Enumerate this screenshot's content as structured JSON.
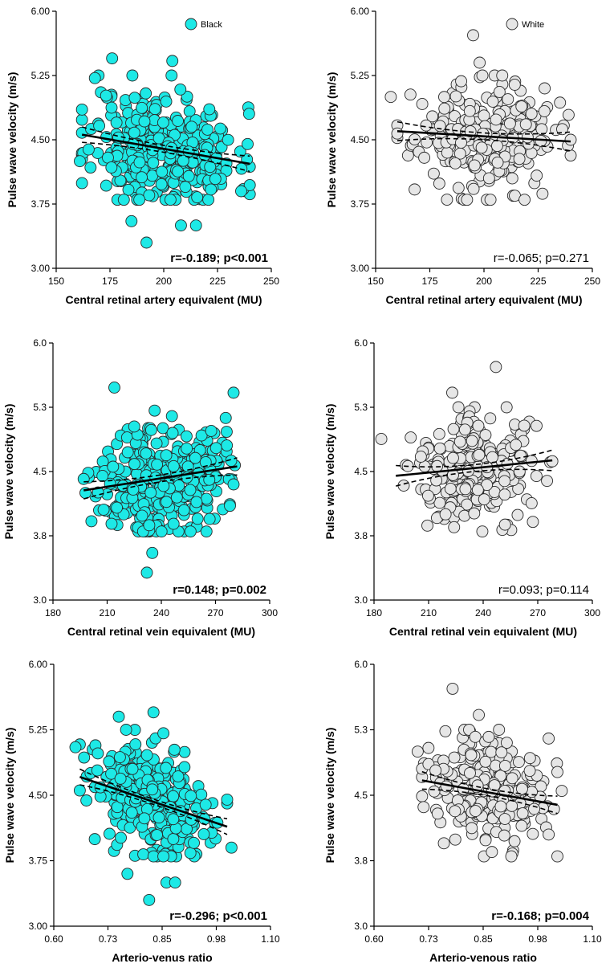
{
  "legend": {
    "black": "Black",
    "white": "White"
  },
  "colors": {
    "black_fill": "#1de9e6",
    "white_fill": "#e6e6e6",
    "stroke": "#2a2a2a",
    "line": "#000000"
  },
  "chart_data": [
    {
      "id": "black-cra",
      "type": "scatter",
      "group": "Black",
      "ylabel": "Pulse wave velocity (m/s)",
      "xlabel": "Central retinal artery equivalent (MU)",
      "xlim": [
        150,
        250
      ],
      "ylim": [
        3.0,
        6.0
      ],
      "xticks": [
        "150",
        "175",
        "200",
        "225",
        "250"
      ],
      "yticks": [
        "3.00",
        "3.75",
        "4.50",
        "5.25",
        "6.00"
      ],
      "stat": "r=-0.189; p<0.001",
      "stat_bold": true,
      "fit": {
        "x": [
          162,
          240
        ],
        "y": [
          4.56,
          4.22
        ],
        "ci": [
          0.09,
          0.04,
          0.09
        ]
      },
      "legend": "top-right",
      "points_n": 330,
      "x_mean": 200,
      "x_sd": 17,
      "y_noise": 0.33,
      "seed": 11,
      "extras": [
        [
          176,
          5.45
        ],
        [
          204,
          5.42
        ],
        [
          192,
          3.3
        ],
        [
          185,
          3.55
        ],
        [
          208,
          3.5
        ],
        [
          215,
          3.5
        ],
        [
          239,
          4.45
        ],
        [
          161,
          4.25
        ],
        [
          168,
          5.22
        ],
        [
          236,
          3.9
        ]
      ]
    },
    {
      "id": "white-cra",
      "type": "scatter",
      "group": "White",
      "ylabel": "Pulse wave velocity (m/s)",
      "xlabel": "Central retinal artery equivalent (MU)",
      "xlim": [
        150,
        250
      ],
      "ylim": [
        3.0,
        6.0
      ],
      "xticks": [
        "150",
        "175",
        "200",
        "225",
        "250"
      ],
      "yticks": [
        "3.00",
        "3.75",
        "4.50",
        "5.25",
        "6.00"
      ],
      "stat": "r=-0.065; p=0.271",
      "stat_bold": false,
      "fit": {
        "x": [
          160,
          240
        ],
        "y": [
          4.6,
          4.48
        ],
        "ci": [
          0.11,
          0.04,
          0.11
        ]
      },
      "legend": "top-right",
      "points_n": 260,
      "x_mean": 200,
      "x_sd": 16,
      "y_noise": 0.3,
      "seed": 23,
      "extras": [
        [
          195,
          5.72
        ],
        [
          198,
          5.4
        ],
        [
          157,
          5.0
        ],
        [
          203,
          3.8
        ],
        [
          168,
          3.92
        ],
        [
          227,
          3.87
        ],
        [
          228,
          5.1
        ],
        [
          240,
          4.5
        ]
      ]
    },
    {
      "id": "black-crv",
      "type": "scatter",
      "group": "Black",
      "ylabel": "Pulse wave velocity (m/s)",
      "xlabel": "Central retinal vein equivalent (MU)",
      "xlim": [
        180,
        300
      ],
      "ylim": [
        3.0,
        6.0
      ],
      "xticks": [
        "180",
        "210",
        "240",
        "270",
        "300"
      ],
      "yticks": [
        "3.0",
        "3.8",
        "4.5",
        "5.3",
        "6.0"
      ],
      "stat": "r=0.148; p=0.002",
      "stat_bold": true,
      "fit": {
        "x": [
          197,
          282
        ],
        "y": [
          4.28,
          4.56
        ],
        "ci": [
          0.1,
          0.04,
          0.1
        ]
      },
      "legend": "none",
      "points_n": 330,
      "x_mean": 240,
      "x_sd": 17,
      "y_noise": 0.33,
      "seed": 37,
      "extras": [
        [
          214,
          5.48
        ],
        [
          280,
          5.42
        ],
        [
          232,
          3.32
        ],
        [
          235,
          3.55
        ],
        [
          280,
          4.35
        ],
        [
          278,
          4.1
        ],
        [
          198,
          4.25
        ],
        [
          265,
          3.8
        ]
      ]
    },
    {
      "id": "white-crv",
      "type": "scatter",
      "group": "White",
      "ylabel": "Pulse wave velocity (m/s)",
      "xlabel": "Central retinal vein equivalent (MU)",
      "xlim": [
        180,
        300
      ],
      "ylim": [
        3.0,
        6.0
      ],
      "xticks": [
        "180",
        "210",
        "240",
        "270",
        "300"
      ],
      "yticks": [
        "3.0",
        "3.8",
        "4.5",
        "5.3",
        "6.0"
      ],
      "stat": "r=0.093; p=0.114",
      "stat_bold": false,
      "fit": {
        "x": [
          192,
          278
        ],
        "y": [
          4.45,
          4.63
        ],
        "ci": [
          0.12,
          0.04,
          0.12
        ]
      },
      "legend": "none",
      "points_n": 260,
      "x_mean": 235,
      "x_sd": 16,
      "y_noise": 0.3,
      "seed": 41,
      "extras": [
        [
          247,
          5.72
        ],
        [
          184,
          4.88
        ],
        [
          223,
          5.42
        ],
        [
          224,
          3.85
        ],
        [
          278,
          4.62
        ],
        [
          252,
          3.88
        ],
        [
          260,
          4.5
        ]
      ]
    },
    {
      "id": "black-avr",
      "type": "scatter",
      "group": "Black",
      "ylabel": "Pulse wave velocity (m/s)",
      "xlabel": "Arterio-venus ratio",
      "xlim": [
        0.6,
        1.1
      ],
      "ylim": [
        3.0,
        6.0
      ],
      "xticks": [
        "0.60",
        "0.73",
        "0.85",
        "0.98",
        "1.10"
      ],
      "yticks": [
        "3.00",
        "3.75",
        "4.50",
        "5.25",
        "6.00"
      ],
      "stat": "r=-0.296; p<0.001",
      "stat_bold": true,
      "fit": {
        "x": [
          0.66,
          1.0
        ],
        "y": [
          4.71,
          4.14
        ],
        "ci": [
          0.09,
          0.03,
          0.09
        ]
      },
      "legend": "none",
      "points_n": 330,
      "x_mean": 0.83,
      "x_sd": 0.07,
      "y_noise": 0.3,
      "seed": 53,
      "extras": [
        [
          0.83,
          5.45
        ],
        [
          0.75,
          5.4
        ],
        [
          0.82,
          3.3
        ],
        [
          0.77,
          3.6
        ],
        [
          0.86,
          3.5
        ],
        [
          0.88,
          3.5
        ],
        [
          0.65,
          5.05
        ],
        [
          1.01,
          3.9
        ],
        [
          1.0,
          4.45
        ]
      ]
    },
    {
      "id": "white-avr",
      "type": "scatter",
      "group": "White",
      "ylabel": "Pulse wave velocity (m/s)",
      "xlabel": "Arterio-venous ratio",
      "xlim": [
        0.6,
        1.1
      ],
      "ylim": [
        3.0,
        6.0
      ],
      "xticks": [
        "0.60",
        "0.73",
        "0.85",
        "0.98",
        "1.10"
      ],
      "yticks": [
        "3.0",
        "3.8",
        "4.5",
        "5.3",
        "6.0"
      ],
      "stat": "r=-0.168; p=0.004",
      "stat_bold": true,
      "fit": {
        "x": [
          0.71,
          1.02
        ],
        "y": [
          4.67,
          4.39
        ],
        "ci": [
          0.1,
          0.04,
          0.1
        ]
      },
      "legend": "none",
      "points_n": 260,
      "x_mean": 0.855,
      "x_sd": 0.065,
      "y_noise": 0.3,
      "seed": 67,
      "extras": [
        [
          0.78,
          5.72
        ],
        [
          0.84,
          5.42
        ],
        [
          0.76,
          3.95
        ],
        [
          0.87,
          3.85
        ],
        [
          0.7,
          5.0
        ],
        [
          1.0,
          4.05
        ],
        [
          1.0,
          5.15
        ],
        [
          1.03,
          4.55
        ]
      ]
    }
  ]
}
